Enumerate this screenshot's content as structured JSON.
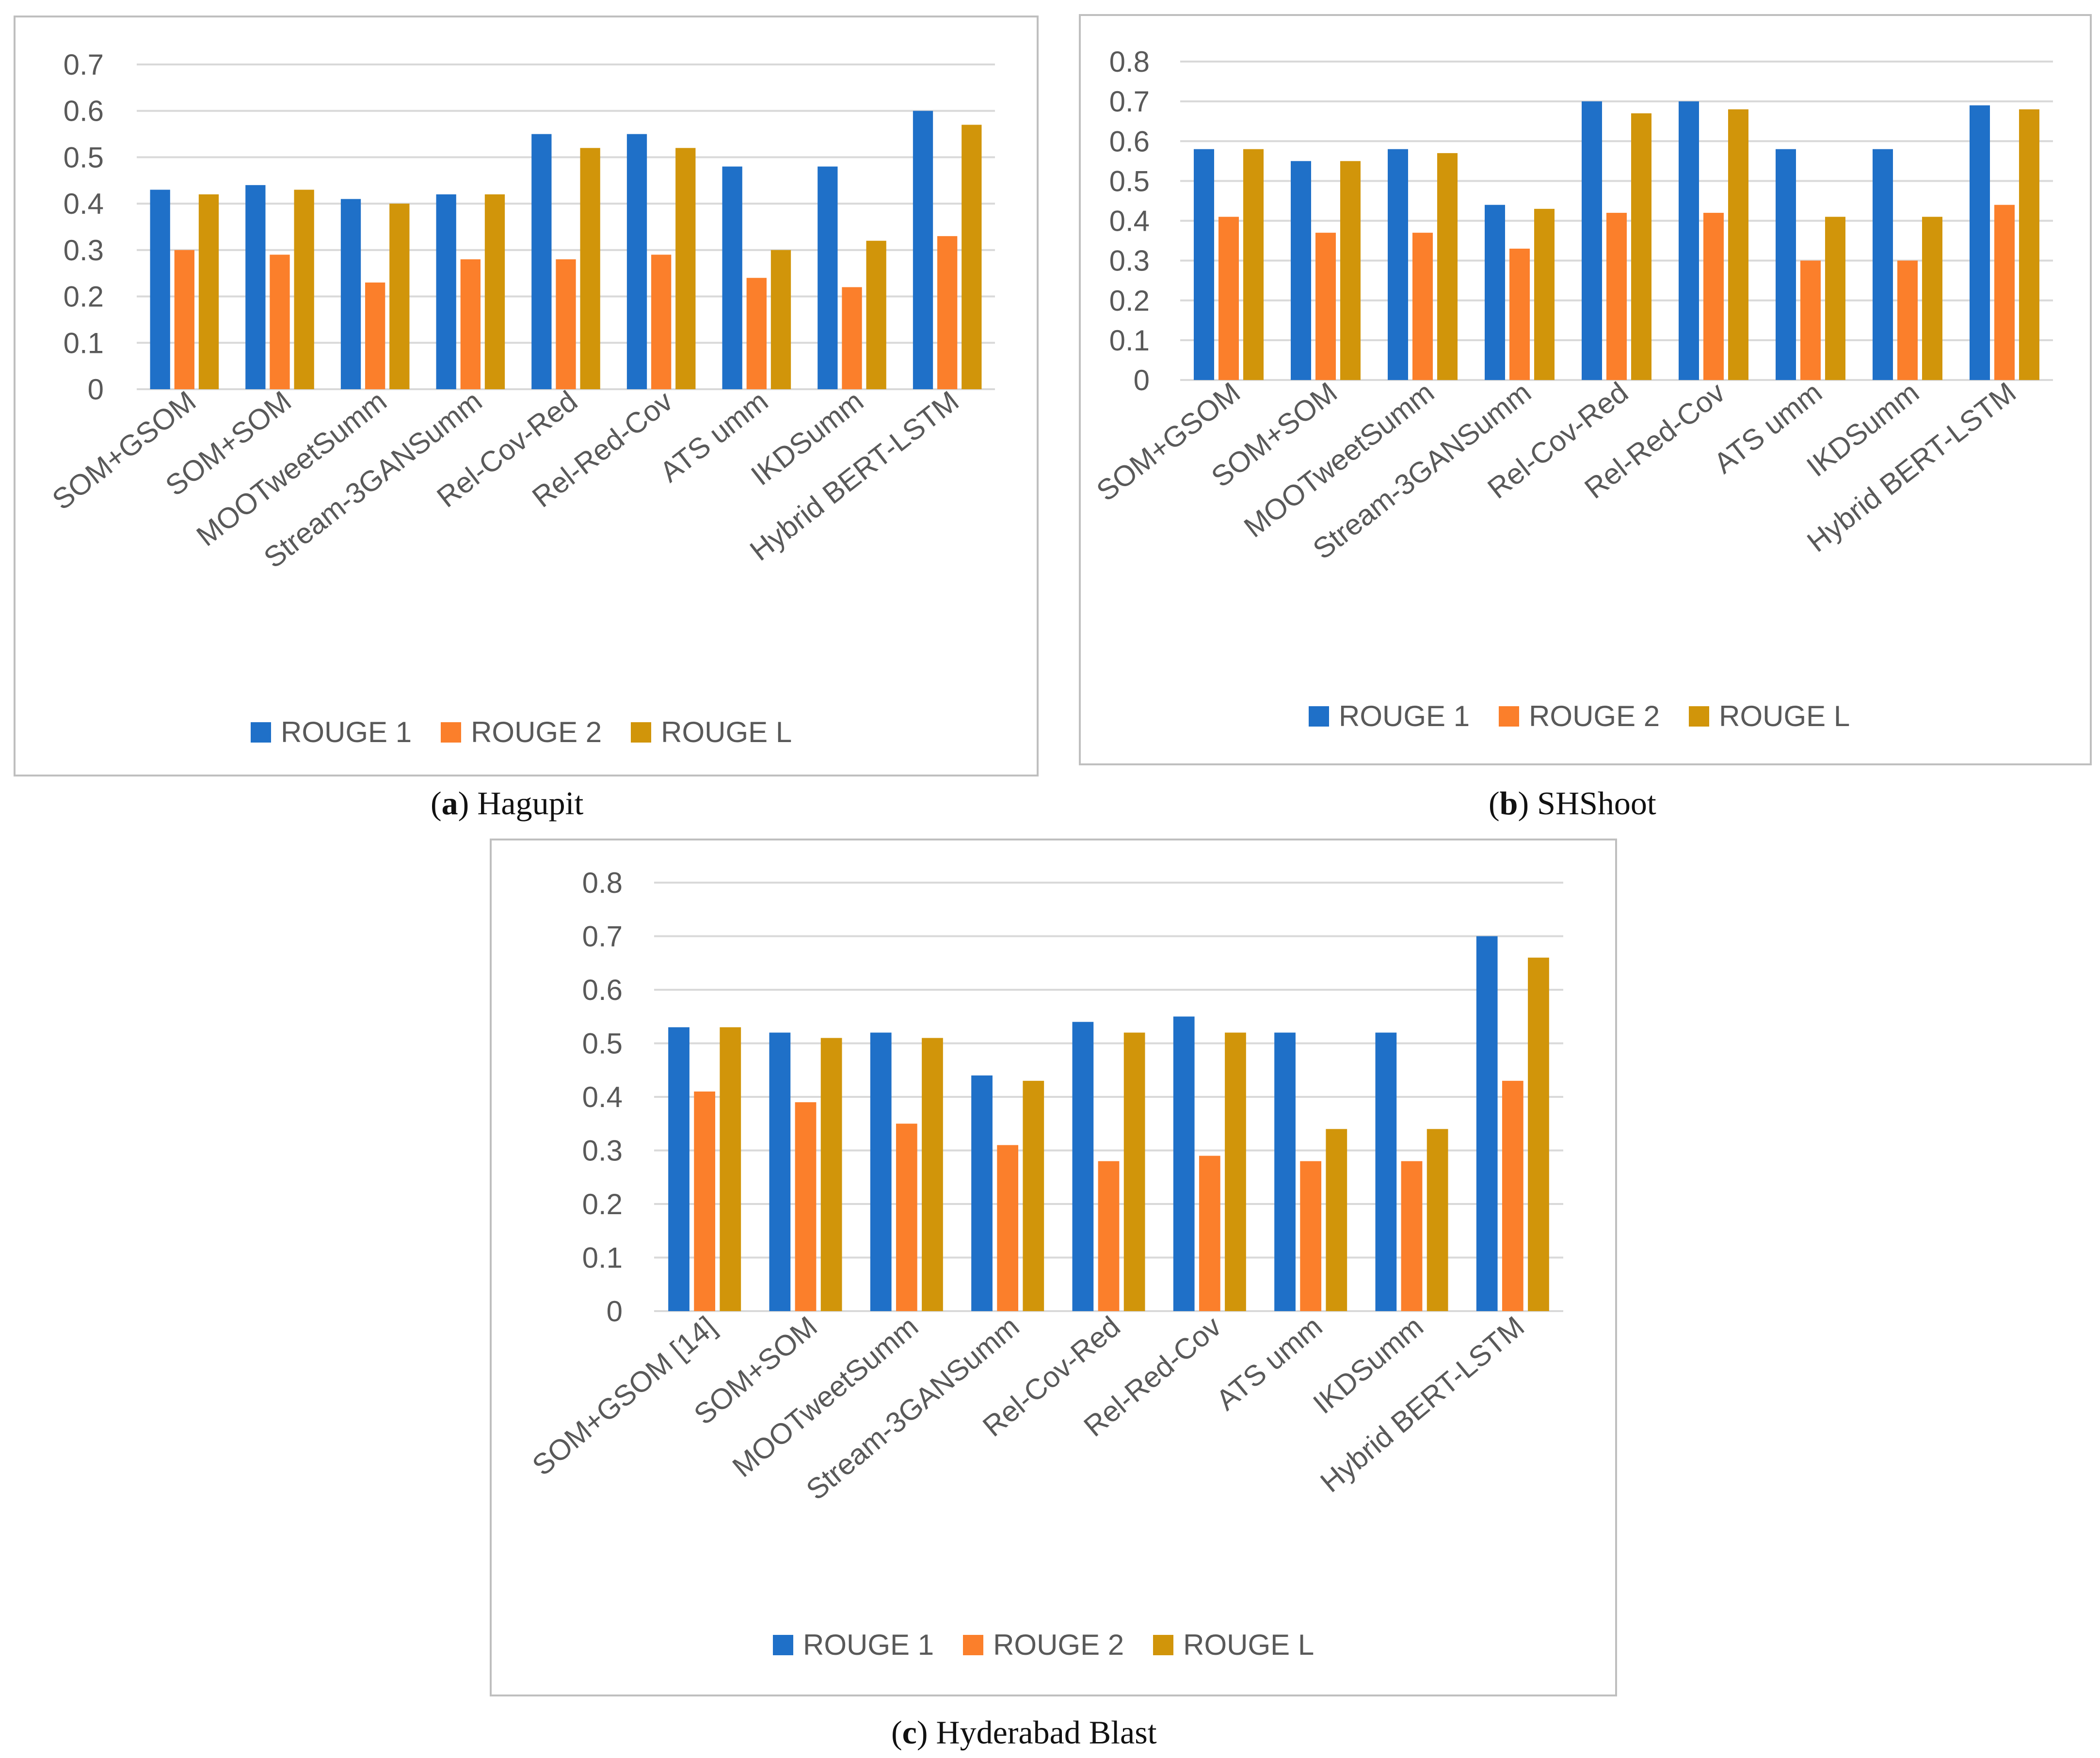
{
  "series_colors": [
    "#1F70C8",
    "#FB7F2B",
    "#D1950A"
  ],
  "captions": [
    {
      "letter": "a",
      "open": "(",
      "close": ")",
      "title": " Hagupit"
    },
    {
      "letter": "b",
      "open": "(",
      "close": ")",
      "title": " SHShoot"
    },
    {
      "letter": "c",
      "open": "(",
      "close": ")",
      "title": " Hyderabad Blast"
    }
  ],
  "legend": [
    "ROUGE 1",
    "ROUGE 2",
    "ROUGE L"
  ],
  "chart_data": [
    {
      "type": "bar",
      "title": "(a) Hagupit",
      "xlabel": "",
      "ylabel": "",
      "ylim": [
        0,
        0.7
      ],
      "yticks": [
        "0",
        "0.1",
        "0.2",
        "0.3",
        "0.4",
        "0.5",
        "0.6",
        "0.7"
      ],
      "grid": true,
      "legend_position": "bottom",
      "categories": [
        "SOM+GSOM",
        "SOM+SOM",
        "MOOTweetSumm",
        "Stream-3GANSumm",
        "Rel-Cov-Red",
        "Rel-Red-Cov",
        "ATS umm",
        "IKDSumm",
        "Hybrid BERT-LSTM"
      ],
      "series": [
        {
          "name": "ROUGE 1",
          "values": [
            0.43,
            0.44,
            0.41,
            0.42,
            0.55,
            0.55,
            0.48,
            0.48,
            0.6
          ]
        },
        {
          "name": "ROUGE 2",
          "values": [
            0.3,
            0.29,
            0.23,
            0.28,
            0.28,
            0.29,
            0.24,
            0.22,
            0.33
          ]
        },
        {
          "name": "ROUGE L",
          "values": [
            0.42,
            0.43,
            0.4,
            0.42,
            0.52,
            0.52,
            0.3,
            0.32,
            0.57
          ]
        }
      ]
    },
    {
      "type": "bar",
      "title": "(b) SHShoot",
      "xlabel": "",
      "ylabel": "",
      "ylim": [
        0,
        0.8
      ],
      "yticks": [
        "0",
        "0.1",
        "0.2",
        "0.3",
        "0.4",
        "0.5",
        "0.6",
        "0.7",
        "0.8"
      ],
      "grid": true,
      "legend_position": "bottom",
      "categories": [
        "SOM+GSOM",
        "SOM+SOM",
        "MOOTweetSumm",
        "Stream-3GANSumm",
        "Rel-Cov-Red",
        "Rel-Red-Cov",
        "ATS umm",
        "IKDSumm",
        "Hybrid BERT-LSTM"
      ],
      "series": [
        {
          "name": "ROUGE 1",
          "values": [
            0.58,
            0.55,
            0.58,
            0.44,
            0.7,
            0.7,
            0.58,
            0.58,
            0.69
          ]
        },
        {
          "name": "ROUGE 2",
          "values": [
            0.41,
            0.37,
            0.37,
            0.33,
            0.42,
            0.42,
            0.3,
            0.3,
            0.44
          ]
        },
        {
          "name": "ROUGE L",
          "values": [
            0.58,
            0.55,
            0.57,
            0.43,
            0.67,
            0.68,
            0.41,
            0.41,
            0.68
          ]
        }
      ]
    },
    {
      "type": "bar",
      "title": "(c) Hyderabad Blast",
      "xlabel": "",
      "ylabel": "",
      "ylim": [
        0,
        0.8
      ],
      "yticks": [
        "0",
        "0.1",
        "0.2",
        "0.3",
        "0.4",
        "0.5",
        "0.6",
        "0.7",
        "0.8"
      ],
      "grid": true,
      "legend_position": "bottom",
      "categories": [
        "SOM+GSOM [14]",
        "SOM+SOM",
        "MOOTweetSumm",
        "Stream-3GANSumm",
        "Rel-Cov-Red",
        "Rel-Red-Cov",
        "ATS umm",
        "IKDSumm",
        "Hybrid BERT-LSTM"
      ],
      "series": [
        {
          "name": "ROUGE 1",
          "values": [
            0.53,
            0.52,
            0.52,
            0.44,
            0.54,
            0.55,
            0.52,
            0.52,
            0.7
          ]
        },
        {
          "name": "ROUGE 2",
          "values": [
            0.41,
            0.39,
            0.35,
            0.31,
            0.28,
            0.29,
            0.28,
            0.28,
            0.43
          ]
        },
        {
          "name": "ROUGE L",
          "values": [
            0.53,
            0.51,
            0.51,
            0.43,
            0.52,
            0.52,
            0.34,
            0.34,
            0.66
          ]
        }
      ]
    }
  ]
}
